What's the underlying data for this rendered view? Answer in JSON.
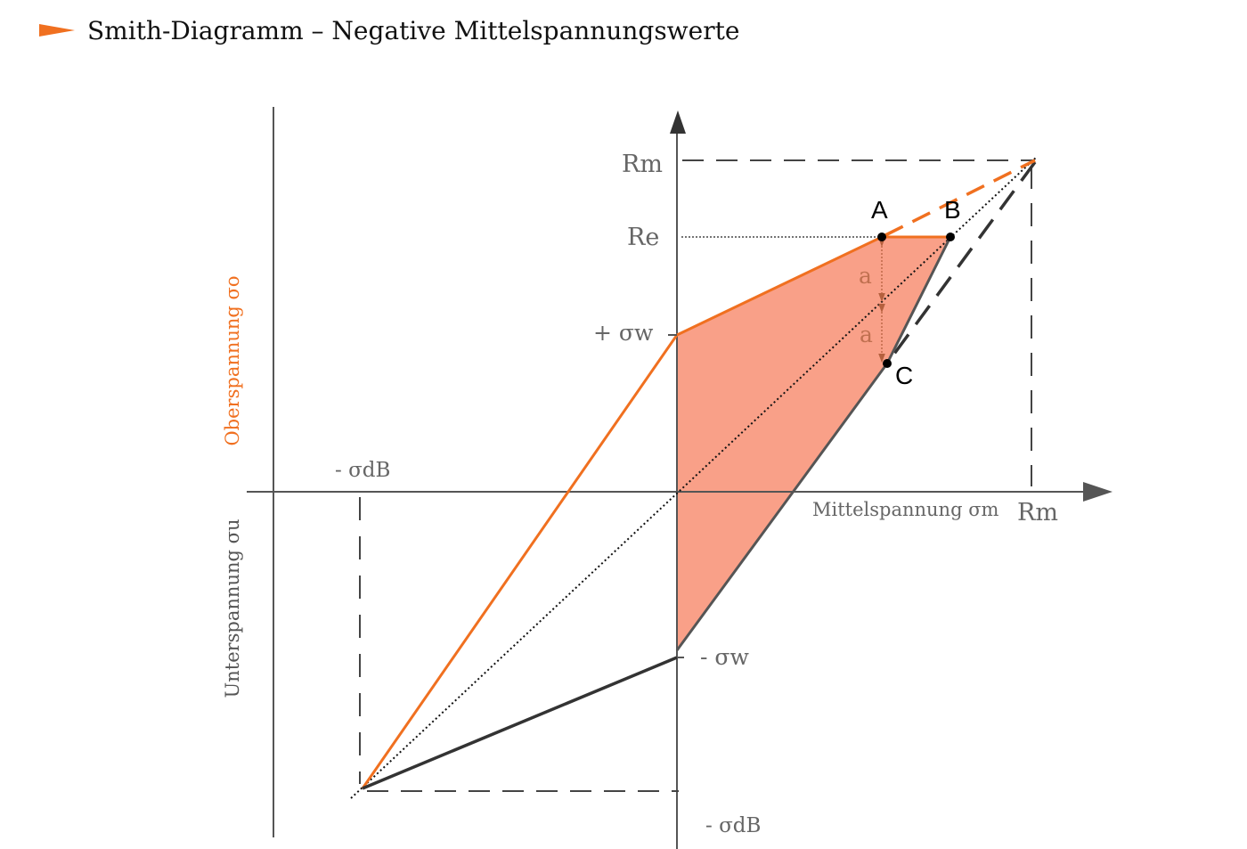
{
  "title": "Smith-Diagramm – Negative Mittelspannungswerte",
  "colors": {
    "accent": "#f07020",
    "fill": "#f9a088",
    "axis": "#555555",
    "dark": "#333333"
  },
  "labels": {
    "rm_y": "Rm",
    "re": "Re",
    "plus_sigma_w": "+ σw",
    "minus_sigma_db_top": "- σdB",
    "x_axis": "Mittelspannung σm",
    "rm_x": "Rm",
    "minus_sigma_w": "- σw",
    "minus_sigma_db_bottom": "- σdB",
    "point_a": "A",
    "point_b": "B",
    "point_c": "C",
    "dist_a1": "a",
    "dist_a2": "a",
    "y_upper": "Oberspannung σo",
    "y_lower": "Unterspannung σu"
  }
}
